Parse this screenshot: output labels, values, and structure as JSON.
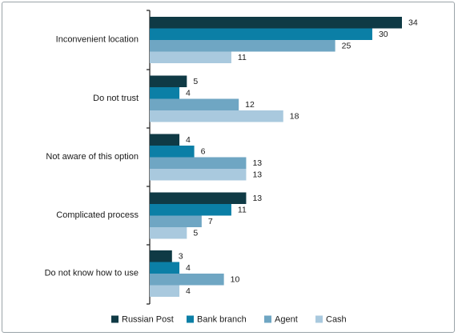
{
  "chart_data": {
    "type": "bar",
    "orientation": "horizontal",
    "categories": [
      "Inconvenient location",
      "Do not trust",
      "Not aware of this option",
      "Complicated process",
      "Do not know how to use"
    ],
    "series": [
      {
        "name": "Russian Post",
        "color": "#0f3a45",
        "values": [
          34,
          5,
          4,
          13,
          3
        ]
      },
      {
        "name": "Bank branch",
        "color": "#0b7fa6",
        "values": [
          30,
          4,
          6,
          11,
          4
        ]
      },
      {
        "name": "Agent",
        "color": "#6fa6c3",
        "values": [
          25,
          12,
          13,
          7,
          10
        ]
      },
      {
        "name": "Cash",
        "color": "#a9c9de",
        "values": [
          11,
          18,
          13,
          5,
          4
        ]
      }
    ],
    "xlim": [
      0,
      37
    ],
    "grid": false,
    "legend_position": "bottom"
  }
}
